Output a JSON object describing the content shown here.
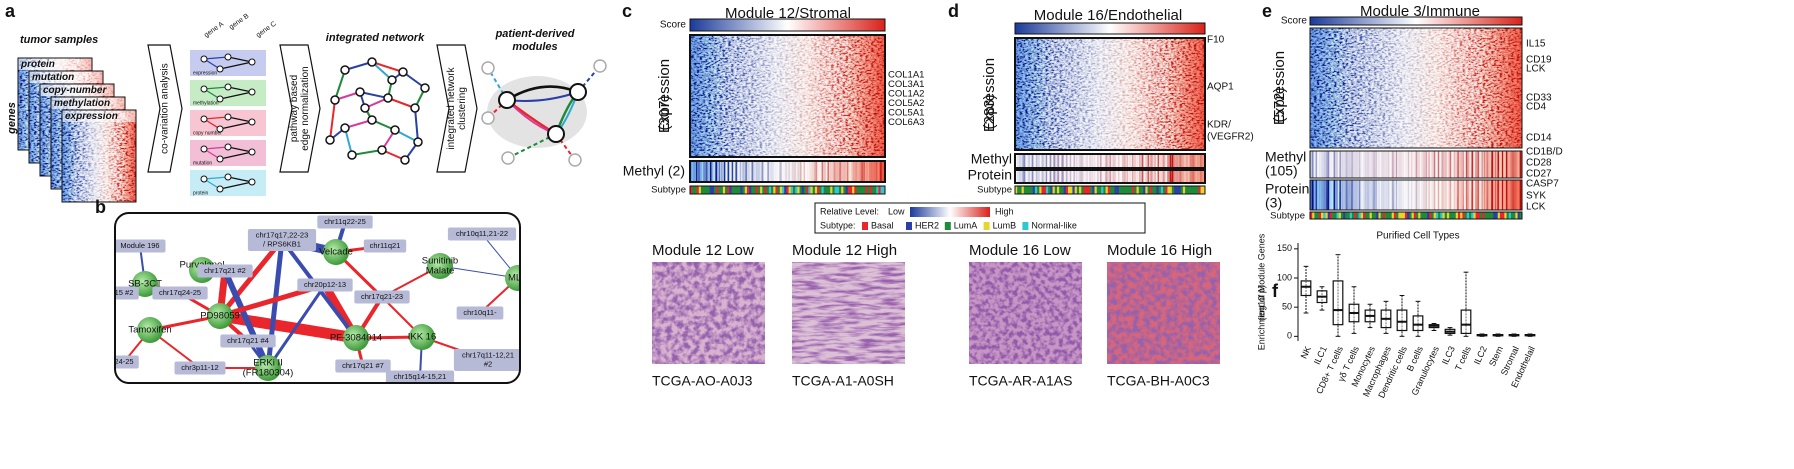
{
  "panel_a": {
    "label": "a",
    "samples_title": "tumor samples",
    "genes_label": "genes",
    "layers": [
      "protein",
      "mutation",
      "copy-number",
      "methylation",
      "expression"
    ],
    "step1": [
      "co-variation analysis"
    ],
    "gene_labels": [
      "gene A",
      "gene B",
      "gene C"
    ],
    "omics_labels": [
      "expression",
      "methylation",
      "copy number",
      "mutation",
      "protein"
    ],
    "step2": [
      "pathway based",
      "edge normalization"
    ],
    "network_title": "integrated network",
    "step3": [
      "integrated network",
      "clustering"
    ],
    "modules_title": [
      "patient-derived",
      "modules"
    ]
  },
  "panel_b": {
    "label": "b",
    "nodes": [
      [
        "Module 196"
      ],
      [
        "SB-3CT"
      ],
      [
        "Purvalanol",
        "A"
      ],
      [
        "15 #2"
      ],
      [
        "chr17q24-25"
      ],
      [
        "Tamoxifen"
      ],
      [
        "24-25"
      ],
      [
        "PD98059"
      ],
      [
        "chr17q21 #2"
      ],
      [
        "chr17q17,22-23",
        "/ RPS6KB1"
      ],
      [
        "chr11q22-25"
      ],
      [
        "chr11q21"
      ],
      [
        "Velcade"
      ],
      [
        "chr20p12-13"
      ],
      [
        "chr17q21-23"
      ],
      [
        "Sunitinib",
        "Malate"
      ],
      [
        "chr10q11,21-22"
      ],
      [
        "MLN"
      ],
      [
        "chr10q11-"
      ],
      [
        "IKK 16"
      ],
      [
        "PF-3084014"
      ],
      [
        "chr17q21 #4"
      ],
      [
        "chr17q21 #7"
      ],
      [
        "ERKi II",
        "(FR180304)"
      ],
      [
        "chr3p11-12"
      ],
      [
        "chr15q14-15,21"
      ],
      [
        "chr17q11-12,21",
        "#2"
      ]
    ]
  },
  "panel_c": {
    "label": "c",
    "title": "Module 12/Stromal",
    "score_label": "Score",
    "expression_label": [
      "Expression",
      "(307)"
    ],
    "genes": [
      "COL1A1",
      "COL3A1",
      "COL1A2",
      "COL5A2",
      "COL5A1",
      "COL6A3"
    ],
    "methyl_label": "Methyl (2)",
    "subtype_label": "Subtype"
  },
  "panel_d": {
    "label": "d",
    "title": "Module 16/Endothelial",
    "score_label": "Score",
    "expression_label": [
      "Expression",
      "(283)"
    ],
    "genes": [
      "F10",
      "AQP1",
      "KDR/",
      "(VEGFR2)"
    ],
    "methyl_label": "Methyl",
    "protein_label": "Protein",
    "subtype_label": "Subtype"
  },
  "legend": {
    "level_label": "Relative Level:",
    "low": "Low",
    "high": "High",
    "subtype_label": "Subtype:",
    "subtypes": [
      {
        "name": "Basal",
        "color": "#e8262b"
      },
      {
        "name": "HER2",
        "color": "#2a3fa8"
      },
      {
        "name": "LumA",
        "color": "#1f8a3a"
      },
      {
        "name": "LumB",
        "color": "#e8d430"
      },
      {
        "name": "Normal-like",
        "color": "#30c8d0"
      }
    ]
  },
  "images": [
    {
      "title": "Module 12 Low",
      "sample": "TCGA-AO-A0J3"
    },
    {
      "title": "Module 12 High",
      "sample": "TCGA-A1-A0SH"
    },
    {
      "title": "Module 16 Low",
      "sample": "TCGA-AR-A1AS"
    },
    {
      "title": "Module 16 High",
      "sample": "TCGA-BH-A0C3"
    }
  ],
  "panel_e": {
    "label": "e",
    "title": "Module 3/Immune",
    "score_label": "Score",
    "expression_label": [
      "Expression",
      "(572)"
    ],
    "genes": [
      "IL15",
      "CD19",
      "LCK",
      "CD33",
      "CD4",
      "CD14",
      "CD1B/D",
      "CD28",
      "CD27"
    ],
    "methyl_label": [
      "Methyl",
      "(105)"
    ],
    "protein_genes": [
      "CASP7",
      "SYK",
      "LCK"
    ],
    "protein_label": [
      "Protein",
      "(3)"
    ],
    "subtype_label": "Subtype"
  },
  "panel_f": {
    "label": "f"
  },
  "chart_data": {
    "type": "box",
    "title": "Purified Cell Types",
    "y_label": [
      "Enrichment of Module Genes",
      "(log10 p)"
    ],
    "categories": [
      "NK",
      "ILC1",
      "CD8+ T cells",
      "γδ T cells",
      "Monocytes",
      "Macrophages",
      "Dendritic cells",
      "B cells",
      "Granulocytes",
      "ILC3",
      "T cells",
      "ILC2",
      "Stem",
      "Stromal",
      "Endothelail"
    ],
    "boxes": [
      {
        "whislo": 40,
        "q1": 70,
        "med": 85,
        "q3": 95,
        "whishi": 120
      },
      {
        "whislo": 45,
        "q1": 58,
        "med": 68,
        "q3": 78,
        "whishi": 85
      },
      {
        "whislo": 0,
        "q1": 20,
        "med": 45,
        "q3": 95,
        "whishi": 140
      },
      {
        "whislo": 5,
        "q1": 25,
        "med": 40,
        "q3": 55,
        "whishi": 85
      },
      {
        "whislo": 15,
        "q1": 25,
        "med": 35,
        "q3": 45,
        "whishi": 55
      },
      {
        "whislo": 5,
        "q1": 15,
        "med": 30,
        "q3": 45,
        "whishi": 60
      },
      {
        "whislo": 0,
        "q1": 10,
        "med": 25,
        "q3": 45,
        "whishi": 70
      },
      {
        "whislo": 0,
        "q1": 10,
        "med": 20,
        "q3": 35,
        "whishi": 60
      },
      {
        "whislo": 10,
        "q1": 15,
        "med": 18,
        "q3": 20,
        "whishi": 22
      },
      {
        "whislo": 2,
        "q1": 5,
        "med": 8,
        "q3": 12,
        "whishi": 15
      },
      {
        "whislo": 0,
        "q1": 5,
        "med": 20,
        "q3": 45,
        "whishi": 110
      },
      {
        "whislo": 0,
        "q1": 1,
        "med": 2,
        "q3": 3,
        "whishi": 4
      },
      {
        "whislo": 0,
        "q1": 1,
        "med": 2,
        "q3": 3,
        "whishi": 4
      },
      {
        "whislo": 0,
        "q1": 1,
        "med": 2,
        "q3": 3,
        "whishi": 4
      },
      {
        "whislo": 0,
        "q1": 1,
        "med": 2,
        "q3": 3,
        "whishi": 4
      }
    ],
    "color": "#111111",
    "ylim": [
      -8,
      160
    ],
    "yticks": [
      0,
      50,
      100,
      150
    ]
  }
}
